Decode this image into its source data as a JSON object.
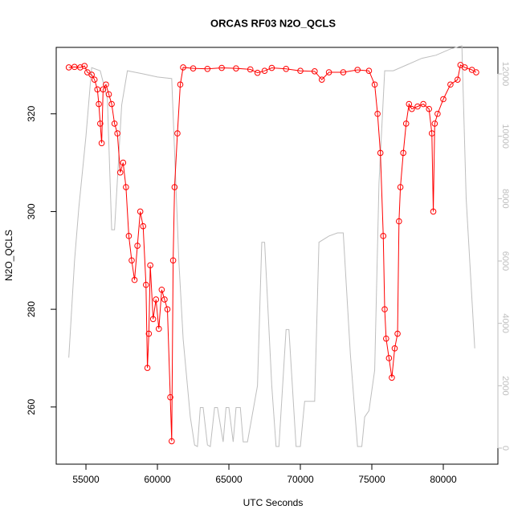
{
  "chart_data": {
    "type": "line",
    "title": "ORCAS RF03 N2O_QCLS",
    "x_label": "UTC Seconds",
    "y_label": "N2O_QCLS",
    "xlim": [
      52920,
      83820
    ],
    "xticks": [
      55000,
      60000,
      65000,
      70000,
      75000,
      80000
    ],
    "ylim": [
      248.3,
      333.6
    ],
    "yticks": [
      260,
      280,
      300,
      320
    ],
    "y2lim": [
      -515,
      12850
    ],
    "y2ticks": [
      0,
      2000,
      4000,
      6000,
      8000,
      10000,
      12000
    ],
    "series": [
      {
        "color": "#bebebe",
        "axis": "y2",
        "x": [
          53800,
          54200,
          54500,
          55000,
          55400,
          56000,
          56500,
          56800,
          57000,
          57500,
          57900,
          59000,
          60000,
          61000,
          61500,
          61800,
          62000,
          62300,
          62600,
          62800,
          63000,
          63200,
          63500,
          63700,
          64000,
          64200,
          64600,
          64800,
          65000,
          65300,
          65500,
          65800,
          66000,
          66300,
          67000,
          67300,
          67500,
          68000,
          68300,
          68500,
          69000,
          69200,
          69700,
          70000,
          70300,
          71000,
          71300,
          72000,
          72600,
          73000,
          73500,
          74000,
          74300,
          74500,
          74800,
          75200,
          75500,
          75900,
          76500,
          77500,
          78500,
          79500,
          80500,
          81300,
          81600,
          82200
        ],
        "values": [
          2900,
          6000,
          7700,
          10000,
          12200,
          12100,
          11200,
          7000,
          7000,
          11000,
          12100,
          12000,
          11900,
          11850,
          6000,
          3500,
          2500,
          1000,
          100,
          50,
          1300,
          1300,
          100,
          50,
          1300,
          1300,
          200,
          1300,
          1300,
          200,
          1300,
          1300,
          200,
          200,
          2000,
          6600,
          6600,
          2000,
          50,
          50,
          3800,
          3800,
          50,
          50,
          1500,
          1500,
          6600,
          6800,
          6900,
          6900,
          3000,
          50,
          50,
          1000,
          1200,
          2500,
          8500,
          12100,
          12100,
          12300,
          12500,
          12600,
          12800,
          12900,
          8000,
          3200
        ]
      },
      {
        "color": "#ff0000",
        "x": [
          53800,
          54200,
          54600,
          54900,
          55100,
          55400,
          55600,
          55800,
          55900,
          56000,
          56100,
          56200,
          56400,
          56600,
          56800,
          57000,
          57200,
          57400,
          57600,
          57800,
          58000,
          58200,
          58400,
          58600,
          58800,
          59000,
          59200,
          59300,
          59400,
          59500,
          59700,
          59900,
          60100,
          60300,
          60500,
          60700,
          60900,
          61000,
          61100,
          61200,
          61400,
          61600,
          61800,
          62500,
          63500,
          64500,
          65500,
          66500,
          67000,
          67500,
          68000,
          69000,
          70000,
          71000,
          71500,
          72000,
          73000,
          74000,
          74800,
          75200,
          75400,
          75600,
          75800,
          75900,
          76000,
          76200,
          76400,
          76600,
          76800,
          76900,
          77000,
          77200,
          77400,
          77600,
          77800,
          78200,
          78600,
          79000,
          79200,
          79300,
          79400,
          79600,
          80000,
          80500,
          81000,
          81200,
          81500,
          82000,
          82300
        ],
        "values": [
          329.5,
          329.6,
          329.5,
          329.8,
          328.5,
          328.0,
          327,
          325,
          322,
          318,
          314,
          325,
          326,
          324,
          322,
          318,
          316,
          308,
          310,
          305,
          295,
          290,
          286,
          293,
          300,
          297,
          285,
          268,
          275,
          289,
          278,
          282,
          276,
          284,
          282,
          280,
          262,
          253,
          290,
          305,
          316,
          326,
          329.5,
          329.3,
          329.2,
          329.4,
          329.3,
          329.1,
          328.4,
          328.8,
          329.4,
          329.2,
          328.8,
          328.7,
          327,
          328.5,
          328.5,
          329.0,
          328.8,
          326,
          320,
          312,
          295,
          280,
          274,
          270,
          266,
          272,
          275,
          298,
          305,
          312,
          318,
          322,
          321,
          321.5,
          322,
          321,
          316,
          300,
          318,
          320,
          323,
          326,
          327,
          330,
          329.5,
          329,
          328.5
        ]
      }
    ]
  }
}
